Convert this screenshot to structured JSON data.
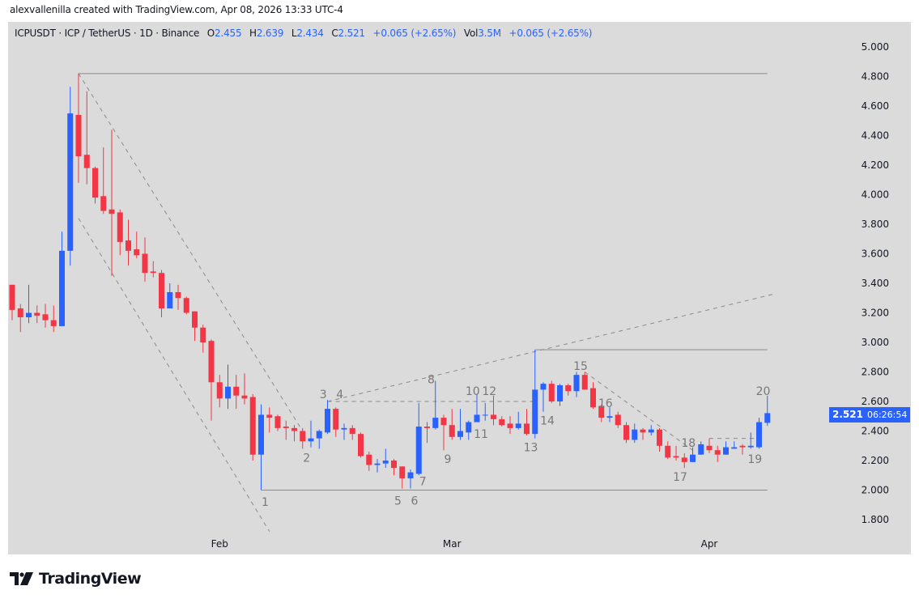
{
  "credit": "alexvallenilla created with TradingView.com, Apr 08, 2026 13:33 UTC-4",
  "legend": {
    "symbol": "ICPUSDT · ICP / TetherUS · 1D · Binance",
    "o_label": "O",
    "o": "2.455",
    "h_label": "H",
    "h": "2.639",
    "l_label": "L",
    "l": "2.434",
    "c_label": "C",
    "c": "2.521",
    "change": "+0.065 (+2.65%)",
    "vol_label": "Vol",
    "vol": "3.5M",
    "vol_change": "+0.065 (+2.65%)"
  },
  "last_price": {
    "price": "2.521",
    "countdown": "06:26:54"
  },
  "brand": {
    "name": "TradingView"
  },
  "colors": {
    "up": "#2962ff",
    "down": "#f23645",
    "background": "#dbdbdb",
    "drawing": "#8a8a8a",
    "label": "#787878",
    "accent": "#2962ff"
  },
  "chart_data": {
    "type": "candlestick",
    "title": "ICPUSDT · ICP / TetherUS · 1D · Binance",
    "ylim": [
      1.7,
      5.05
    ],
    "yticks": [
      "1.800",
      "2.000",
      "2.200",
      "2.400",
      "2.600",
      "2.800",
      "3.000",
      "3.200",
      "3.400",
      "3.600",
      "3.800",
      "4.000",
      "4.200",
      "4.400",
      "4.600",
      "4.800",
      "5.000"
    ],
    "xticks": [
      {
        "label": "Feb",
        "date": "2026-02-01"
      },
      {
        "label": "Mar",
        "date": "2026-03-01"
      },
      {
        "label": "Apr",
        "date": "2026-04-01"
      }
    ],
    "grid": false,
    "columns": [
      "date",
      "open",
      "high",
      "low",
      "close"
    ],
    "candles": [
      [
        "2026-01-07",
        3.39,
        3.39,
        3.15,
        3.22
      ],
      [
        "2026-01-08",
        3.23,
        3.26,
        3.07,
        3.17
      ],
      [
        "2026-01-09",
        3.17,
        3.39,
        3.13,
        3.2
      ],
      [
        "2026-01-10",
        3.2,
        3.25,
        3.13,
        3.18
      ],
      [
        "2026-01-11",
        3.19,
        3.26,
        3.1,
        3.15
      ],
      [
        "2026-01-12",
        3.15,
        3.25,
        3.07,
        3.11
      ],
      [
        "2026-01-13",
        3.11,
        3.75,
        3.11,
        3.62
      ],
      [
        "2026-01-14",
        3.62,
        4.73,
        3.52,
        4.55
      ],
      [
        "2026-01-15",
        4.54,
        4.82,
        4.08,
        4.26
      ],
      [
        "2026-01-16",
        4.27,
        4.7,
        4.07,
        4.18
      ],
      [
        "2026-01-17",
        4.18,
        4.19,
        3.94,
        3.98
      ],
      [
        "2026-01-18",
        3.99,
        4.32,
        3.87,
        3.89
      ],
      [
        "2026-01-19",
        3.9,
        4.44,
        3.45,
        3.87
      ],
      [
        "2026-01-20",
        3.88,
        3.9,
        3.59,
        3.68
      ],
      [
        "2026-01-21",
        3.69,
        3.83,
        3.52,
        3.62
      ],
      [
        "2026-01-22",
        3.63,
        3.75,
        3.57,
        3.59
      ],
      [
        "2026-01-23",
        3.6,
        3.71,
        3.41,
        3.47
      ],
      [
        "2026-01-24",
        3.48,
        3.55,
        3.44,
        3.47
      ],
      [
        "2026-01-25",
        3.47,
        3.49,
        3.17,
        3.23
      ],
      [
        "2026-01-26",
        3.23,
        3.4,
        3.23,
        3.34
      ],
      [
        "2026-01-27",
        3.34,
        3.39,
        3.22,
        3.3
      ],
      [
        "2026-01-28",
        3.3,
        3.31,
        3.19,
        3.2
      ],
      [
        "2026-01-29",
        3.21,
        3.21,
        3.01,
        3.1
      ],
      [
        "2026-01-30",
        3.1,
        3.12,
        2.93,
        3.0
      ],
      [
        "2026-01-31",
        3.01,
        3.02,
        2.47,
        2.73
      ],
      [
        "2026-02-01",
        2.73,
        2.78,
        2.56,
        2.62
      ],
      [
        "2026-02-02",
        2.62,
        2.85,
        2.55,
        2.7
      ],
      [
        "2026-02-03",
        2.7,
        2.78,
        2.55,
        2.64
      ],
      [
        "2026-02-04",
        2.64,
        2.79,
        2.58,
        2.62
      ],
      [
        "2026-02-05",
        2.63,
        2.65,
        2.2,
        2.24
      ],
      [
        "2026-02-06",
        2.24,
        2.58,
        2.0,
        2.51
      ],
      [
        "2026-02-07",
        2.51,
        2.56,
        2.39,
        2.49
      ],
      [
        "2026-02-08",
        2.5,
        2.51,
        2.4,
        2.42
      ],
      [
        "2026-02-09",
        2.43,
        2.47,
        2.34,
        2.42
      ],
      [
        "2026-02-10",
        2.42,
        2.44,
        2.33,
        2.4
      ],
      [
        "2026-02-11",
        2.4,
        2.42,
        2.28,
        2.33
      ],
      [
        "2026-02-12",
        2.33,
        2.47,
        2.29,
        2.35
      ],
      [
        "2026-02-13",
        2.35,
        2.41,
        2.28,
        2.4
      ],
      [
        "2026-02-14",
        2.39,
        2.61,
        2.38,
        2.55
      ],
      [
        "2026-02-15",
        2.55,
        2.56,
        2.36,
        2.41
      ],
      [
        "2026-02-16",
        2.41,
        2.45,
        2.34,
        2.42
      ],
      [
        "2026-02-17",
        2.42,
        2.44,
        2.34,
        2.38
      ],
      [
        "2026-02-18",
        2.38,
        2.39,
        2.22,
        2.23
      ],
      [
        "2026-02-19",
        2.24,
        2.26,
        2.13,
        2.17
      ],
      [
        "2026-02-20",
        2.17,
        2.21,
        2.12,
        2.18
      ],
      [
        "2026-02-21",
        2.18,
        2.28,
        2.15,
        2.2
      ],
      [
        "2026-02-22",
        2.2,
        2.21,
        2.1,
        2.15
      ],
      [
        "2026-02-23",
        2.16,
        2.16,
        2.01,
        2.08
      ],
      [
        "2026-02-24",
        2.08,
        2.14,
        2.01,
        2.12
      ],
      [
        "2026-02-25",
        2.11,
        2.59,
        2.1,
        2.43
      ],
      [
        "2026-02-26",
        2.43,
        2.46,
        2.32,
        2.42
      ],
      [
        "2026-02-27",
        2.42,
        2.74,
        2.41,
        2.49
      ],
      [
        "2026-02-28",
        2.49,
        2.51,
        2.27,
        2.44
      ],
      [
        "2026-03-01",
        2.44,
        2.55,
        2.34,
        2.36
      ],
      [
        "2026-03-02",
        2.36,
        2.55,
        2.34,
        2.4
      ],
      [
        "2026-03-03",
        2.39,
        2.47,
        2.34,
        2.46
      ],
      [
        "2026-03-04",
        2.46,
        2.65,
        2.46,
        2.51
      ],
      [
        "2026-03-05",
        2.51,
        2.59,
        2.47,
        2.51
      ],
      [
        "2026-03-06",
        2.51,
        2.64,
        2.44,
        2.48
      ],
      [
        "2026-03-07",
        2.48,
        2.5,
        2.43,
        2.44
      ],
      [
        "2026-03-08",
        2.45,
        2.5,
        2.38,
        2.42
      ],
      [
        "2026-03-09",
        2.42,
        2.53,
        2.41,
        2.45
      ],
      [
        "2026-03-10",
        2.45,
        2.55,
        2.37,
        2.38
      ],
      [
        "2026-03-11",
        2.38,
        2.95,
        2.35,
        2.68
      ],
      [
        "2026-03-12",
        2.68,
        2.73,
        2.53,
        2.72
      ],
      [
        "2026-03-13",
        2.72,
        2.74,
        2.59,
        2.6
      ],
      [
        "2026-03-14",
        2.6,
        2.72,
        2.57,
        2.71
      ],
      [
        "2026-03-15",
        2.71,
        2.72,
        2.64,
        2.67
      ],
      [
        "2026-03-16",
        2.67,
        2.8,
        2.63,
        2.78
      ],
      [
        "2026-03-17",
        2.78,
        2.8,
        2.68,
        2.68
      ],
      [
        "2026-03-18",
        2.69,
        2.73,
        2.55,
        2.56
      ],
      [
        "2026-03-19",
        2.57,
        2.58,
        2.46,
        2.49
      ],
      [
        "2026-03-20",
        2.49,
        2.56,
        2.46,
        2.5
      ],
      [
        "2026-03-21",
        2.51,
        2.53,
        2.42,
        2.44
      ],
      [
        "2026-03-22",
        2.44,
        2.46,
        2.32,
        2.34
      ],
      [
        "2026-03-23",
        2.34,
        2.45,
        2.32,
        2.41
      ],
      [
        "2026-03-24",
        2.41,
        2.42,
        2.34,
        2.39
      ],
      [
        "2026-03-25",
        2.39,
        2.44,
        2.37,
        2.41
      ],
      [
        "2026-03-26",
        2.41,
        2.42,
        2.26,
        2.3
      ],
      [
        "2026-03-27",
        2.3,
        2.33,
        2.21,
        2.22
      ],
      [
        "2026-03-28",
        2.23,
        2.3,
        2.2,
        2.22
      ],
      [
        "2026-03-29",
        2.22,
        2.25,
        2.15,
        2.19
      ],
      [
        "2026-03-30",
        2.19,
        2.29,
        2.19,
        2.24
      ],
      [
        "2026-03-31",
        2.24,
        2.33,
        2.24,
        2.31
      ],
      [
        "2026-04-01",
        2.3,
        2.35,
        2.25,
        2.27
      ],
      [
        "2026-04-02",
        2.27,
        2.3,
        2.19,
        2.24
      ],
      [
        "2026-04-03",
        2.24,
        2.33,
        2.24,
        2.29
      ],
      [
        "2026-04-04",
        2.28,
        2.33,
        2.28,
        2.29
      ],
      [
        "2026-04-05",
        2.3,
        2.31,
        2.24,
        2.29
      ],
      [
        "2026-04-06",
        2.29,
        2.39,
        2.28,
        2.3
      ],
      [
        "2026-04-07",
        2.29,
        2.49,
        2.28,
        2.46
      ],
      [
        "2026-04-08",
        2.455,
        2.639,
        2.434,
        2.521
      ]
    ],
    "drawings": [
      {
        "style": "solid",
        "from": [
          "2026-01-15",
          4.82
        ],
        "to": [
          "2026-04-08",
          4.82
        ]
      },
      {
        "style": "dashed",
        "from": [
          "2026-01-15",
          4.82
        ],
        "to": [
          "2026-02-11",
          2.4
        ]
      },
      {
        "style": "dashed",
        "from": [
          "2026-01-15",
          3.84
        ],
        "to": [
          "2026-02-07",
          1.72
        ]
      },
      {
        "style": "solid",
        "from": [
          "2026-02-06",
          2.0
        ],
        "to": [
          "2026-04-08",
          2.0
        ]
      },
      {
        "style": "dashed",
        "from": [
          "2026-02-14",
          2.6
        ],
        "to": [
          "2026-03-11",
          2.6
        ]
      },
      {
        "style": "dashed",
        "from": [
          "2026-02-14",
          2.6
        ],
        "to": [
          "2026-04-09",
          3.33
        ]
      },
      {
        "style": "solid",
        "from": [
          "2026-03-11",
          2.95
        ],
        "to": [
          "2026-04-08",
          2.95
        ]
      },
      {
        "style": "dashed",
        "from": [
          "2026-03-17",
          2.8
        ],
        "to": [
          "2026-03-30",
          2.27
        ]
      },
      {
        "style": "dashed",
        "from": [
          "2026-04-01",
          2.35
        ],
        "to": [
          "2026-04-07",
          2.35
        ]
      }
    ],
    "wave_labels": [
      {
        "text": "1",
        "date": "2026-02-06",
        "price": 1.92
      },
      {
        "text": "2",
        "date": "2026-02-11",
        "price": 2.22
      },
      {
        "text": "3",
        "date": "2026-02-13",
        "price": 2.65
      },
      {
        "text": "4",
        "date": "2026-02-15",
        "price": 2.65
      },
      {
        "text": "5",
        "date": "2026-02-22",
        "price": 1.93
      },
      {
        "text": "6",
        "date": "2026-02-24",
        "price": 1.93
      },
      {
        "text": "7",
        "date": "2026-02-25",
        "price": 2.06
      },
      {
        "text": "8",
        "date": "2026-02-26",
        "price": 2.75
      },
      {
        "text": "9",
        "date": "2026-02-28",
        "price": 2.21
      },
      {
        "text": "10",
        "date": "2026-03-03",
        "price": 2.67
      },
      {
        "text": "11",
        "date": "2026-03-04",
        "price": 2.38
      },
      {
        "text": "12",
        "date": "2026-03-05",
        "price": 2.67
      },
      {
        "text": "13",
        "date": "2026-03-10",
        "price": 2.29
      },
      {
        "text": "14",
        "date": "2026-03-12",
        "price": 2.47
      },
      {
        "text": "15",
        "date": "2026-03-16",
        "price": 2.84
      },
      {
        "text": "16",
        "date": "2026-03-19",
        "price": 2.59
      },
      {
        "text": "17",
        "date": "2026-03-28",
        "price": 2.09
      },
      {
        "text": "18",
        "date": "2026-03-29",
        "price": 2.32
      },
      {
        "text": "19",
        "date": "2026-04-06",
        "price": 2.21
      },
      {
        "text": "20",
        "date": "2026-04-07",
        "price": 2.67
      }
    ]
  }
}
